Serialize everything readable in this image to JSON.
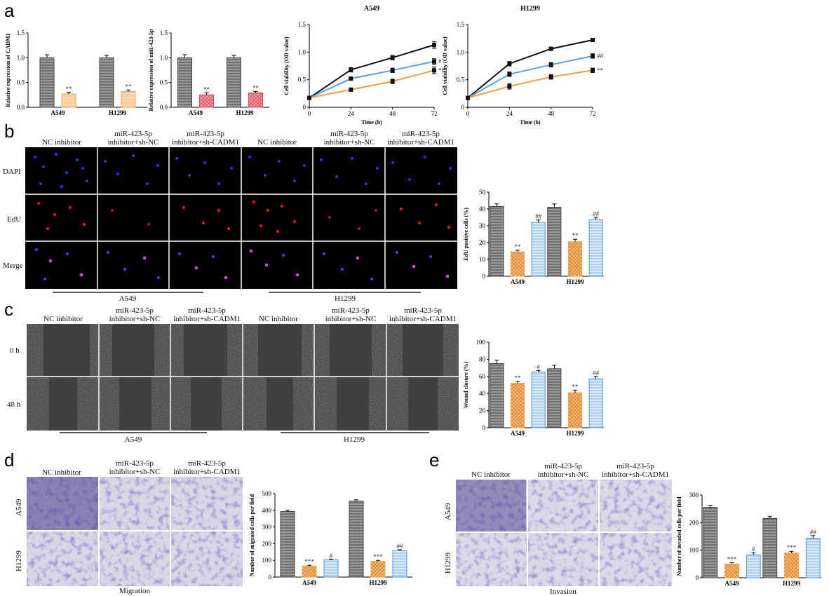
{
  "panel_labels": [
    "a",
    "b",
    "c",
    "d",
    "e"
  ],
  "columns_three": [
    "NC inhibitor",
    "miR-423-5p|inhibitor+sh-NC",
    "miR-423-5p|inhibitor+sh-CADM1"
  ],
  "cell_lines": [
    "A549",
    "H1299"
  ],
  "panel_b": {
    "rows": [
      "DAPI",
      "EdU",
      "Merge"
    ]
  },
  "panel_c": {
    "rows": [
      "0 h",
      "48 h"
    ]
  },
  "panel_d": {
    "rows": [
      "A549",
      "H1299"
    ],
    "caption": "Migration"
  },
  "panel_e": {
    "rows": [
      "A549",
      "H1299"
    ],
    "caption": "Invasion"
  },
  "colors": {
    "gray": "#8a8a8a",
    "orange": "#f2a24a",
    "peach": "#f8cf9a",
    "pink": "#ef6f7e",
    "blue": "#7fb3e6",
    "black_line": "#111111",
    "blue_line": "#5aa0e8",
    "orange_line": "#f0a040"
  },
  "chart_data": [
    {
      "id": "a1",
      "type": "bar",
      "ylabel": "Relative expression of CADM1",
      "categories": [
        "A549",
        "H1299"
      ],
      "ylim": [
        0,
        1.5
      ],
      "yticks": [
        "0.0",
        "0.5",
        "1.0",
        "1.5"
      ],
      "series": [
        {
          "values": [
            1.0,
            1.0
          ],
          "errors": [
            0.06,
            0.05
          ],
          "marks": [
            "",
            ""
          ],
          "color": "gray"
        },
        {
          "values": [
            0.27,
            0.32
          ],
          "errors": [
            0.03,
            0.03
          ],
          "marks": [
            "**",
            "**"
          ],
          "color": "peach"
        }
      ]
    },
    {
      "id": "a2",
      "type": "bar",
      "ylabel": "Relative expression of miR-423-5p",
      "categories": [
        "A549",
        "H1299"
      ],
      "ylim": [
        0,
        1.5
      ],
      "yticks": [
        "0.0",
        "0.5",
        "1.0",
        "1.5"
      ],
      "series": [
        {
          "values": [
            1.0,
            1.0
          ],
          "errors": [
            0.06,
            0.05
          ],
          "marks": [
            "",
            ""
          ],
          "color": "gray"
        },
        {
          "values": [
            0.25,
            0.29
          ],
          "errors": [
            0.04,
            0.03
          ],
          "marks": [
            "**",
            "**"
          ],
          "color": "pink"
        }
      ]
    },
    {
      "id": "a3",
      "type": "line",
      "title": "A549",
      "xlabel": "Time (h)",
      "ylabel": "Cell viability (OD value)",
      "x": [
        0,
        24,
        48,
        72
      ],
      "xticks": [
        "0",
        "24",
        "48",
        "72"
      ],
      "xlim": [
        0,
        72
      ],
      "ylim": [
        0,
        1.5
      ],
      "yticks": [
        "0",
        "0.5",
        "1.0",
        "1.5"
      ],
      "series": [
        {
          "values": [
            0.17,
            0.68,
            0.9,
            1.13
          ],
          "errors": [
            0.02,
            0.04,
            0.04,
            0.06
          ],
          "mark": "",
          "color": "black_line"
        },
        {
          "values": [
            0.17,
            0.52,
            0.67,
            0.83
          ],
          "errors": [
            0.02,
            0.03,
            0.04,
            0.05
          ],
          "mark": "#",
          "color": "blue_line"
        },
        {
          "values": [
            0.17,
            0.32,
            0.47,
            0.67
          ],
          "errors": [
            0.02,
            0.03,
            0.04,
            0.06
          ],
          "mark": "**",
          "color": "orange_line"
        }
      ]
    },
    {
      "id": "a4",
      "type": "line",
      "title": "H1299",
      "xlabel": "Time (h)",
      "ylabel": "Cell viability (OD value)",
      "x": [
        0,
        24,
        48,
        72
      ],
      "xticks": [
        "0",
        "24",
        "48",
        "72"
      ],
      "xlim": [
        0,
        72
      ],
      "ylim": [
        0,
        1.5
      ],
      "yticks": [
        "0",
        "0.5",
        "1.0",
        "1.5"
      ],
      "series": [
        {
          "values": [
            0.17,
            0.79,
            1.06,
            1.22
          ],
          "errors": [
            0.02,
            0.04,
            0.03,
            0.03
          ],
          "mark": "",
          "color": "black_line"
        },
        {
          "values": [
            0.17,
            0.6,
            0.77,
            0.93
          ],
          "errors": [
            0.02,
            0.04,
            0.04,
            0.04
          ],
          "mark": "##",
          "color": "blue_line"
        },
        {
          "values": [
            0.17,
            0.38,
            0.55,
            0.67
          ],
          "errors": [
            0.02,
            0.05,
            0.04,
            0.04
          ],
          "mark": "**",
          "color": "orange_line"
        }
      ]
    },
    {
      "id": "b",
      "type": "bar",
      "ylabel": "EdU positive cells (%)",
      "categories": [
        "A549",
        "H1299"
      ],
      "ylim": [
        0,
        50
      ],
      "yticks": [
        "0",
        "10",
        "20",
        "30",
        "40",
        "50"
      ],
      "series": [
        {
          "values": [
            41.5,
            41
          ],
          "errors": [
            1.5,
            2
          ],
          "marks": [
            "",
            ""
          ],
          "color": "gray"
        },
        {
          "values": [
            14.5,
            20.5
          ],
          "errors": [
            1,
            1.5
          ],
          "marks": [
            "**",
            "**"
          ],
          "color": "orange"
        },
        {
          "values": [
            32,
            33.5
          ],
          "errors": [
            1.5,
            1.5
          ],
          "marks": [
            "##",
            "##"
          ],
          "color": "blue"
        }
      ]
    },
    {
      "id": "c",
      "type": "bar",
      "ylabel": "Wound closure (%)",
      "categories": [
        "A549",
        "H1299"
      ],
      "ylim": [
        0,
        100
      ],
      "yticks": [
        "0",
        "20",
        "40",
        "60",
        "80",
        "100"
      ],
      "series": [
        {
          "values": [
            75,
            69
          ],
          "errors": [
            4,
            4
          ],
          "marks": [
            "",
            ""
          ],
          "color": "gray"
        },
        {
          "values": [
            52,
            41
          ],
          "errors": [
            2,
            3
          ],
          "marks": [
            "**",
            "**"
          ],
          "color": "orange"
        },
        {
          "values": [
            65,
            57
          ],
          "errors": [
            2,
            3
          ],
          "marks": [
            "#",
            "##"
          ],
          "color": "blue"
        }
      ]
    },
    {
      "id": "d",
      "type": "bar",
      "ylabel": "Number of migrated cells per field",
      "categories": [
        "A549",
        "H1299"
      ],
      "ylim": [
        0,
        500
      ],
      "yticks": [
        "0",
        "100",
        "200",
        "300",
        "400",
        "500"
      ],
      "series": [
        {
          "values": [
            393,
            455
          ],
          "errors": [
            8,
            8
          ],
          "marks": [
            "",
            ""
          ],
          "color": "gray"
        },
        {
          "values": [
            66,
            94
          ],
          "errors": [
            5,
            6
          ],
          "marks": [
            "***",
            "***"
          ],
          "color": "orange"
        },
        {
          "values": [
            103,
            158
          ],
          "errors": [
            5,
            6
          ],
          "marks": [
            "#",
            "##"
          ],
          "color": "blue"
        }
      ]
    },
    {
      "id": "e",
      "type": "bar",
      "ylabel": "Number of invaded cells per field",
      "categories": [
        "A549",
        "H1299"
      ],
      "ylim": [
        0,
        300
      ],
      "yticks": [
        "0",
        "100",
        "200",
        "300"
      ],
      "series": [
        {
          "values": [
            255,
            215
          ],
          "errors": [
            8,
            8
          ],
          "marks": [
            "",
            ""
          ],
          "color": "gray"
        },
        {
          "values": [
            50,
            90
          ],
          "errors": [
            5,
            6
          ],
          "marks": [
            "***",
            "***"
          ],
          "color": "orange"
        },
        {
          "values": [
            83,
            143
          ],
          "errors": [
            8,
            10
          ],
          "marks": [
            "#",
            "##"
          ],
          "color": "blue"
        }
      ]
    }
  ]
}
